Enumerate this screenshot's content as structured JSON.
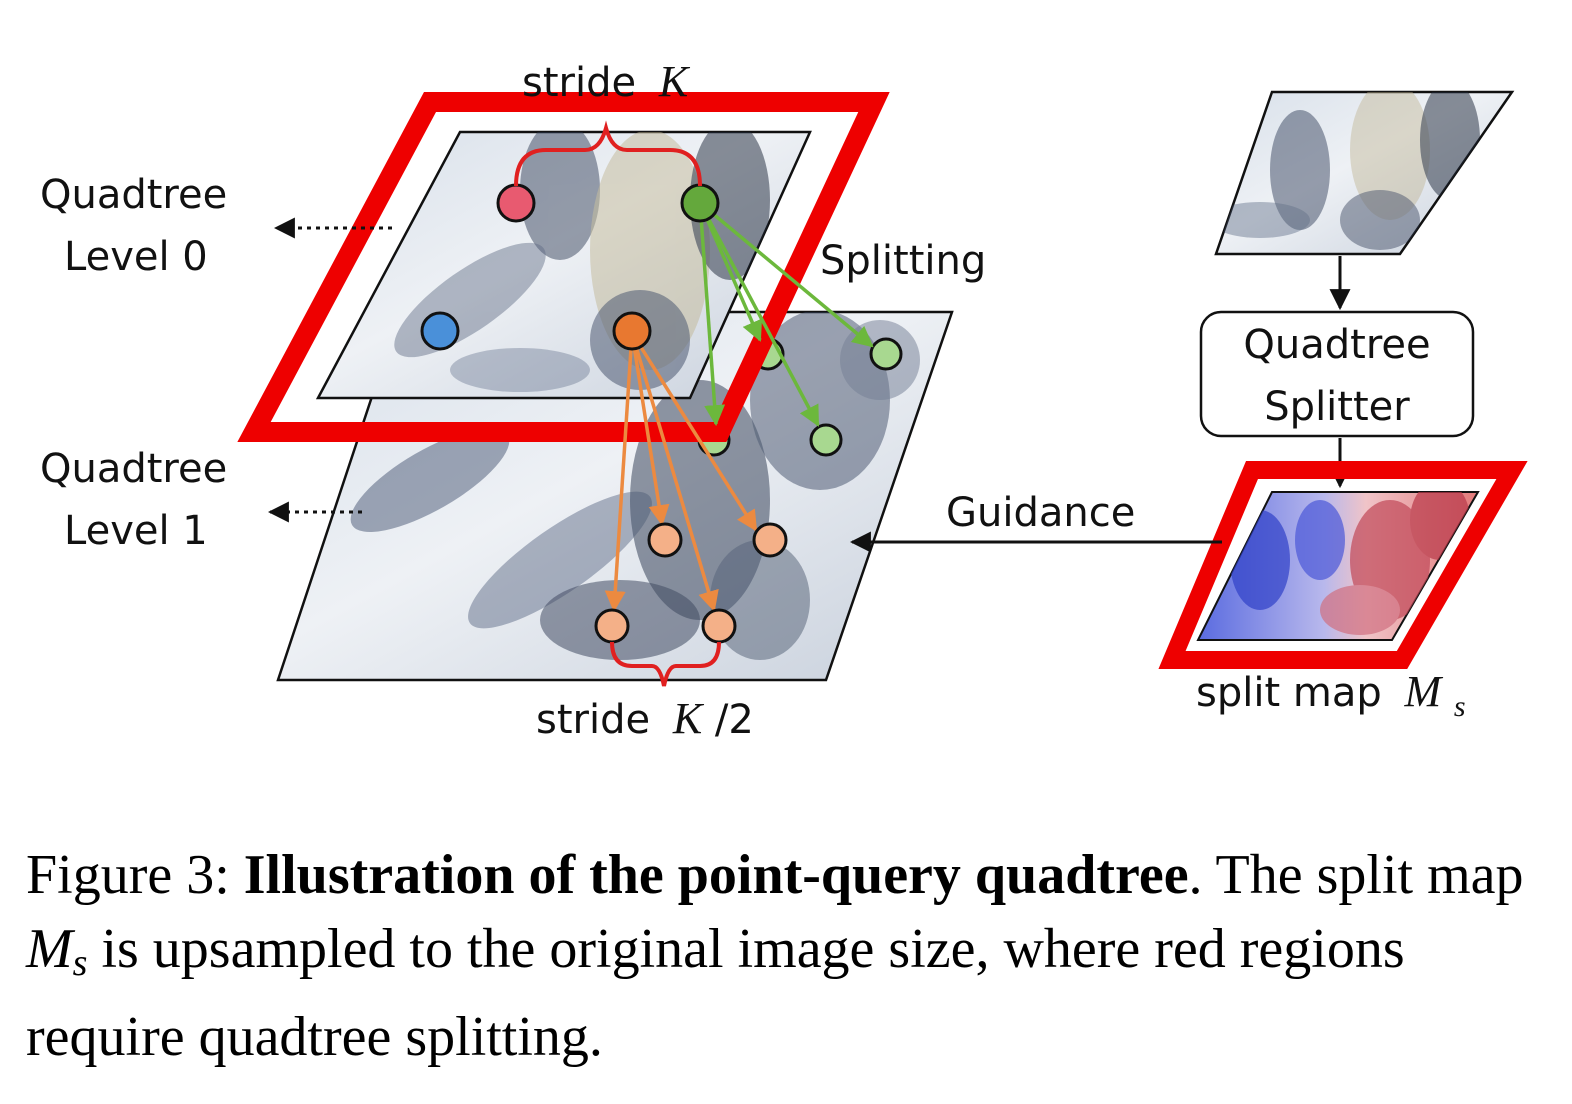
{
  "labels": {
    "stride_top": "stride",
    "stride_top_var": "K",
    "level0_line1": "Quadtree",
    "level0_line2": "Level 0",
    "level1_line1": "Quadtree",
    "level1_line2": "Level 1",
    "splitting": "Splitting",
    "guidance": "Guidance",
    "stride_bottom": "stride",
    "stride_bottom_var": "K",
    "stride_bottom_div": "/2",
    "splitter_line1": "Quadtree",
    "splitter_line2": "Splitter",
    "split_map": "split map",
    "split_map_var": "M",
    "split_map_sub": "s"
  },
  "colors": {
    "highlight_red": "#ee0000",
    "query_red": "#e85a70",
    "query_green": "#64a83c",
    "query_blue": "#4a90d9",
    "query_orange": "#e87830",
    "child_green": "#a8d890",
    "child_orange": "#f4b088",
    "arrow_green": "#6cb83c",
    "arrow_orange": "#ec8a40",
    "bracket_red": "#e02020"
  },
  "caption": {
    "prefix": "Figure 3:",
    "bold_title": "Illustration of the point-query quadtree",
    "after_title": ".  The split map",
    "var": "M",
    "sub": "s",
    "rest": "is upsampled to the original image size, where red regions require quadtree splitting."
  }
}
